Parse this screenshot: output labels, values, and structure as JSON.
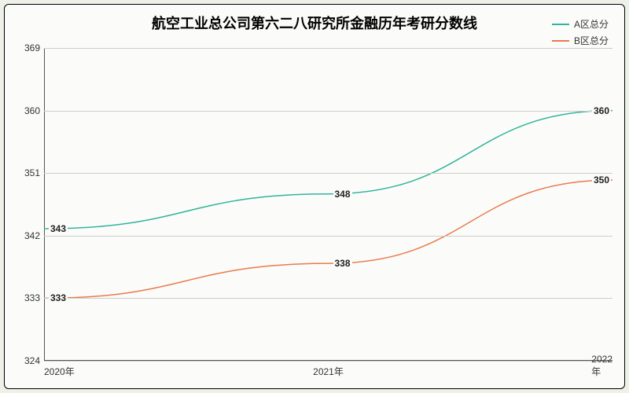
{
  "chart": {
    "type": "line",
    "title": "航空工业总公司第六二八研究所金融历年考研分数线",
    "title_fontsize": 18,
    "background_color": "#fbfcfa",
    "outer_background": "#edf1e8",
    "border_color": "#000000",
    "grid_color": "#cccccc",
    "text_color": "#333333",
    "label_fontsize": 12,
    "x_categories": [
      "2020年",
      "2021年",
      "2022年"
    ],
    "y_ticks": [
      324,
      333,
      342,
      351,
      360,
      369
    ],
    "ylim": [
      324,
      369
    ],
    "series": [
      {
        "name": "A区总分",
        "color": "#33b39a",
        "line_width": 1.5,
        "values": [
          343,
          348,
          360
        ]
      },
      {
        "name": "B区总分",
        "color": "#e87b4c",
        "line_width": 1.5,
        "values": [
          333,
          338,
          350
        ]
      }
    ],
    "legend_position": "top-right"
  }
}
